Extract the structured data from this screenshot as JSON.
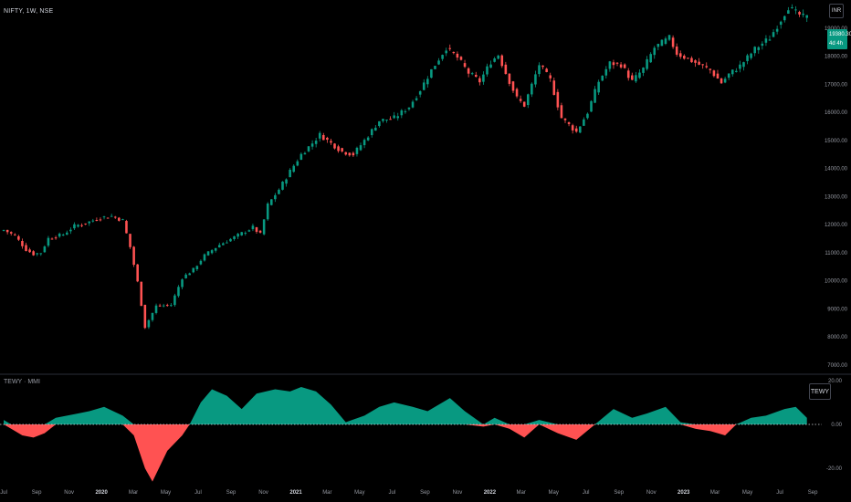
{
  "header": {
    "symbol": "NIFTY, 1W, NSE",
    "currency": "INR"
  },
  "price_tag": {
    "value": "19380.30",
    "timer": "4d 4h"
  },
  "indicator": {
    "title": "TEWY · MMI",
    "button": "TEWY"
  },
  "colors": {
    "up": "#089981",
    "down": "#f23645",
    "down_fill": "#ff5252",
    "up_fill": "#089981",
    "grid": "#1e222d",
    "axis_text": "#9598a1"
  },
  "chart_data": [
    {
      "type": "candlestick",
      "title": "NIFTY, 1W, NSE",
      "ylim": [
        6800,
        20000
      ],
      "y_ticks": [
        "19000.00",
        "18000.00",
        "17000.00",
        "16000.00",
        "15000.00",
        "14000.00",
        "13000.00",
        "12000.00",
        "11000.00",
        "10000.00",
        "9000.00",
        "8000.00",
        "7000.00"
      ],
      "close_path": [
        [
          "2019-07-01",
          11810
        ],
        [
          "2019-07-22",
          11600
        ],
        [
          "2019-08-12",
          11110
        ],
        [
          "2019-08-26",
          10950
        ],
        [
          "2019-09-09",
          11000
        ],
        [
          "2019-09-23",
          11510
        ],
        [
          "2019-10-21",
          11650
        ],
        [
          "2019-11-11",
          11950
        ],
        [
          "2019-12-02",
          12050
        ],
        [
          "2019-12-30",
          12250
        ],
        [
          "2020-01-20",
          12300
        ],
        [
          "2020-02-10",
          12150
        ],
        [
          "2020-02-24",
          11200
        ],
        [
          "2020-03-09",
          9950
        ],
        [
          "2020-03-23",
          8350
        ],
        [
          "2020-04-13",
          9100
        ],
        [
          "2020-05-11",
          9140
        ],
        [
          "2020-06-01",
          10100
        ],
        [
          "2020-06-22",
          10400
        ],
        [
          "2020-07-13",
          10900
        ],
        [
          "2020-08-10",
          11280
        ],
        [
          "2020-09-07",
          11550
        ],
        [
          "2020-10-12",
          11900
        ],
        [
          "2020-10-26",
          11650
        ],
        [
          "2020-11-09",
          12700
        ],
        [
          "2020-11-30",
          13250
        ],
        [
          "2020-12-21",
          13900
        ],
        [
          "2021-01-11",
          14500
        ],
        [
          "2021-02-01",
          14900
        ],
        [
          "2021-02-15",
          15200
        ],
        [
          "2021-03-08",
          14900
        ],
        [
          "2021-03-29",
          14600
        ],
        [
          "2021-04-19",
          14500
        ],
        [
          "2021-05-10",
          15000
        ],
        [
          "2021-06-07",
          15700
        ],
        [
          "2021-07-05",
          15800
        ],
        [
          "2021-08-02",
          16200
        ],
        [
          "2021-08-23",
          16800
        ],
        [
          "2021-09-13",
          17500
        ],
        [
          "2021-10-11",
          18300
        ],
        [
          "2021-11-01",
          17950
        ],
        [
          "2021-11-22",
          17400
        ],
        [
          "2021-12-13",
          17100
        ],
        [
          "2022-01-03",
          17800
        ],
        [
          "2022-01-17",
          18050
        ],
        [
          "2022-01-31",
          17400
        ],
        [
          "2022-02-21",
          16500
        ],
        [
          "2022-03-07",
          16250
        ],
        [
          "2022-04-04",
          17700
        ],
        [
          "2022-04-25",
          17150
        ],
        [
          "2022-05-16",
          15800
        ],
        [
          "2022-06-13",
          15300
        ],
        [
          "2022-07-04",
          16000
        ],
        [
          "2022-07-25",
          17100
        ],
        [
          "2022-08-15",
          17750
        ],
        [
          "2022-09-05",
          17700
        ],
        [
          "2022-09-26",
          17100
        ],
        [
          "2022-10-17",
          17550
        ],
        [
          "2022-11-07",
          18300
        ],
        [
          "2022-12-05",
          18650
        ],
        [
          "2022-12-19",
          18100
        ],
        [
          "2023-01-09",
          17900
        ],
        [
          "2023-01-30",
          17700
        ],
        [
          "2023-02-20",
          17500
        ],
        [
          "2023-03-13",
          17050
        ],
        [
          "2023-03-27",
          17350
        ],
        [
          "2023-04-17",
          17650
        ],
        [
          "2023-05-15",
          18250
        ],
        [
          "2023-06-12",
          18650
        ],
        [
          "2023-07-03",
          19300
        ],
        [
          "2023-07-17",
          19750
        ],
        [
          "2023-07-31",
          19550
        ],
        [
          "2023-08-14",
          19400
        ],
        [
          "2023-08-21",
          19380
        ]
      ]
    },
    {
      "type": "area",
      "title": "TEWY · MMI",
      "ylim": [
        -27,
        22
      ],
      "y_ticks": [
        "20.00",
        "0.00",
        "-20.00"
      ],
      "values": [
        [
          "2019-07-01",
          2
        ],
        [
          "2019-07-15",
          -2
        ],
        [
          "2019-08-05",
          -5
        ],
        [
          "2019-08-26",
          -6
        ],
        [
          "2019-09-16",
          -4
        ],
        [
          "2019-10-07",
          3
        ],
        [
          "2019-10-28",
          4
        ],
        [
          "2019-11-18",
          5
        ],
        [
          "2019-12-09",
          6
        ],
        [
          "2020-01-06",
          8
        ],
        [
          "2020-02-10",
          4
        ],
        [
          "2020-03-02",
          -5
        ],
        [
          "2020-03-23",
          -20
        ],
        [
          "2020-04-06",
          -26
        ],
        [
          "2020-05-04",
          -12
        ],
        [
          "2020-06-01",
          -5
        ],
        [
          "2020-06-15",
          0
        ],
        [
          "2020-07-06",
          10
        ],
        [
          "2020-07-27",
          16
        ],
        [
          "2020-08-24",
          13
        ],
        [
          "2020-09-21",
          7
        ],
        [
          "2020-10-19",
          14
        ],
        [
          "2020-11-23",
          16
        ],
        [
          "2020-12-21",
          15
        ],
        [
          "2021-01-11",
          17
        ],
        [
          "2021-02-08",
          15
        ],
        [
          "2021-03-08",
          9
        ],
        [
          "2021-04-05",
          1
        ],
        [
          "2021-05-10",
          4
        ],
        [
          "2021-06-07",
          8
        ],
        [
          "2021-07-05",
          10
        ],
        [
          "2021-08-09",
          8
        ],
        [
          "2021-09-06",
          6
        ],
        [
          "2021-10-18",
          12
        ],
        [
          "2021-11-15",
          6
        ],
        [
          "2021-12-20",
          -1
        ],
        [
          "2022-01-10",
          3
        ],
        [
          "2022-02-07",
          -2
        ],
        [
          "2022-03-07",
          -6
        ],
        [
          "2022-04-04",
          2
        ],
        [
          "2022-05-09",
          -4
        ],
        [
          "2022-06-13",
          -7
        ],
        [
          "2022-07-18",
          0
        ],
        [
          "2022-08-22",
          7
        ],
        [
          "2022-09-26",
          3
        ],
        [
          "2022-10-24",
          5
        ],
        [
          "2022-11-28",
          8
        ],
        [
          "2022-12-26",
          1
        ],
        [
          "2023-01-23",
          -2
        ],
        [
          "2023-02-20",
          -3
        ],
        [
          "2023-03-20",
          -5
        ],
        [
          "2023-04-10",
          0
        ],
        [
          "2023-05-08",
          3
        ],
        [
          "2023-06-05",
          4
        ],
        [
          "2023-07-10",
          7
        ],
        [
          "2023-07-31",
          8
        ],
        [
          "2023-08-21",
          3
        ]
      ]
    }
  ],
  "x_axis": {
    "labels": [
      {
        "t": "2019-07-01",
        "label": "Jul"
      },
      {
        "t": "2019-09-01",
        "label": "Sep"
      },
      {
        "t": "2019-11-01",
        "label": "Nov"
      },
      {
        "t": "2020-01-01",
        "label": "2020"
      },
      {
        "t": "2020-03-01",
        "label": "Mar"
      },
      {
        "t": "2020-05-01",
        "label": "May"
      },
      {
        "t": "2020-07-01",
        "label": "Jul"
      },
      {
        "t": "2020-09-01",
        "label": "Sep"
      },
      {
        "t": "2020-11-01",
        "label": "Nov"
      },
      {
        "t": "2021-01-01",
        "label": "2021"
      },
      {
        "t": "2021-03-01",
        "label": "Mar"
      },
      {
        "t": "2021-05-01",
        "label": "May"
      },
      {
        "t": "2021-07-01",
        "label": "Jul"
      },
      {
        "t": "2021-09-01",
        "label": "Sep"
      },
      {
        "t": "2021-11-01",
        "label": "Nov"
      },
      {
        "t": "2022-01-01",
        "label": "2022"
      },
      {
        "t": "2022-03-01",
        "label": "Mar"
      },
      {
        "t": "2022-05-01",
        "label": "May"
      },
      {
        "t": "2022-07-01",
        "label": "Jul"
      },
      {
        "t": "2022-09-01",
        "label": "Sep"
      },
      {
        "t": "2022-11-01",
        "label": "Nov"
      },
      {
        "t": "2023-01-01",
        "label": "2023"
      },
      {
        "t": "2023-03-01",
        "label": "Mar"
      },
      {
        "t": "2023-05-01",
        "label": "May"
      },
      {
        "t": "2023-07-01",
        "label": "Jul"
      },
      {
        "t": "2023-09-01",
        "label": "Sep"
      }
    ]
  }
}
